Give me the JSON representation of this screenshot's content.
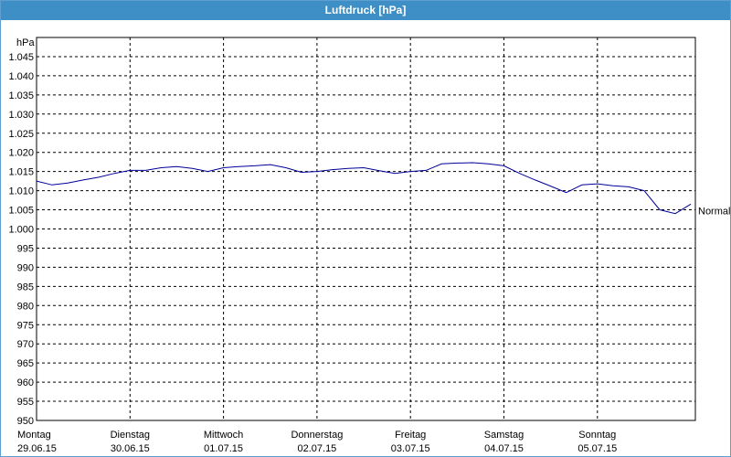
{
  "window": {
    "title": "Luftdruck [hPa]"
  },
  "chart_data": {
    "type": "line",
    "title": "Luftdruck [hPa]",
    "ylabel": "hPa",
    "ylim": [
      950,
      1050
    ],
    "y_ticks": [
      "1.045",
      "1.040",
      "1.035",
      "1.030",
      "1.025",
      "1.020",
      "1.015",
      "1.010",
      "1.005",
      "1.000",
      "995",
      "990",
      "985",
      "980",
      "975",
      "970",
      "965",
      "960",
      "955",
      "950"
    ],
    "y_tick_values": [
      1045,
      1040,
      1035,
      1030,
      1025,
      1020,
      1015,
      1010,
      1005,
      1000,
      995,
      990,
      985,
      980,
      975,
      970,
      965,
      960,
      955,
      950
    ],
    "x_ticks": [
      {
        "day": "Montag",
        "date": "29.06.15"
      },
      {
        "day": "Dienstag",
        "date": "30.06.15"
      },
      {
        "day": "Mittwoch",
        "date": "01.07.15"
      },
      {
        "day": "Donnerstag",
        "date": "02.07.15"
      },
      {
        "day": "Freitag",
        "date": "03.07.15"
      },
      {
        "day": "Samstag",
        "date": "04.07.15"
      },
      {
        "day": "Sonntag",
        "date": "05.07.15"
      }
    ],
    "grid": true,
    "line_color": "#000099",
    "series": [
      {
        "name": "Normal",
        "x": [
          "29.06.15 00:00",
          "29.06.15 04:00",
          "29.06.15 08:00",
          "29.06.15 12:00",
          "29.06.15 16:00",
          "29.06.15 20:00",
          "30.06.15 00:00",
          "30.06.15 04:00",
          "30.06.15 08:00",
          "30.06.15 12:00",
          "30.06.15 16:00",
          "30.06.15 20:00",
          "01.07.15 00:00",
          "01.07.15 04:00",
          "01.07.15 08:00",
          "01.07.15 12:00",
          "01.07.15 16:00",
          "01.07.15 20:00",
          "02.07.15 00:00",
          "02.07.15 04:00",
          "02.07.15 08:00",
          "02.07.15 12:00",
          "02.07.15 16:00",
          "02.07.15 20:00",
          "03.07.15 00:00",
          "03.07.15 04:00",
          "03.07.15 08:00",
          "03.07.15 12:00",
          "03.07.15 16:00",
          "03.07.15 20:00",
          "04.07.15 00:00",
          "04.07.15 04:00",
          "04.07.15 08:00",
          "04.07.15 12:00",
          "04.07.15 16:00",
          "04.07.15 20:00",
          "05.07.15 00:00",
          "05.07.15 04:00",
          "05.07.15 08:00",
          "05.07.15 12:00",
          "05.07.15 16:00",
          "05.07.15 20:00",
          "06.07.15 00:00"
        ],
        "values": [
          1012.5,
          1011.5,
          1012.0,
          1012.8,
          1013.5,
          1014.5,
          1015.3,
          1015.3,
          1016.0,
          1016.3,
          1015.8,
          1015.0,
          1016.0,
          1016.3,
          1016.5,
          1016.8,
          1016.0,
          1014.8,
          1015.0,
          1015.5,
          1015.8,
          1016.0,
          1015.2,
          1014.5,
          1015.0,
          1015.3,
          1017.0,
          1017.2,
          1017.3,
          1017.0,
          1016.5,
          1014.5,
          1012.8,
          1011.2,
          1009.5,
          1011.5,
          1011.8,
          1011.3,
          1011.0,
          1010.0,
          1005.0,
          1004.0,
          1006.5
        ]
      }
    ]
  }
}
